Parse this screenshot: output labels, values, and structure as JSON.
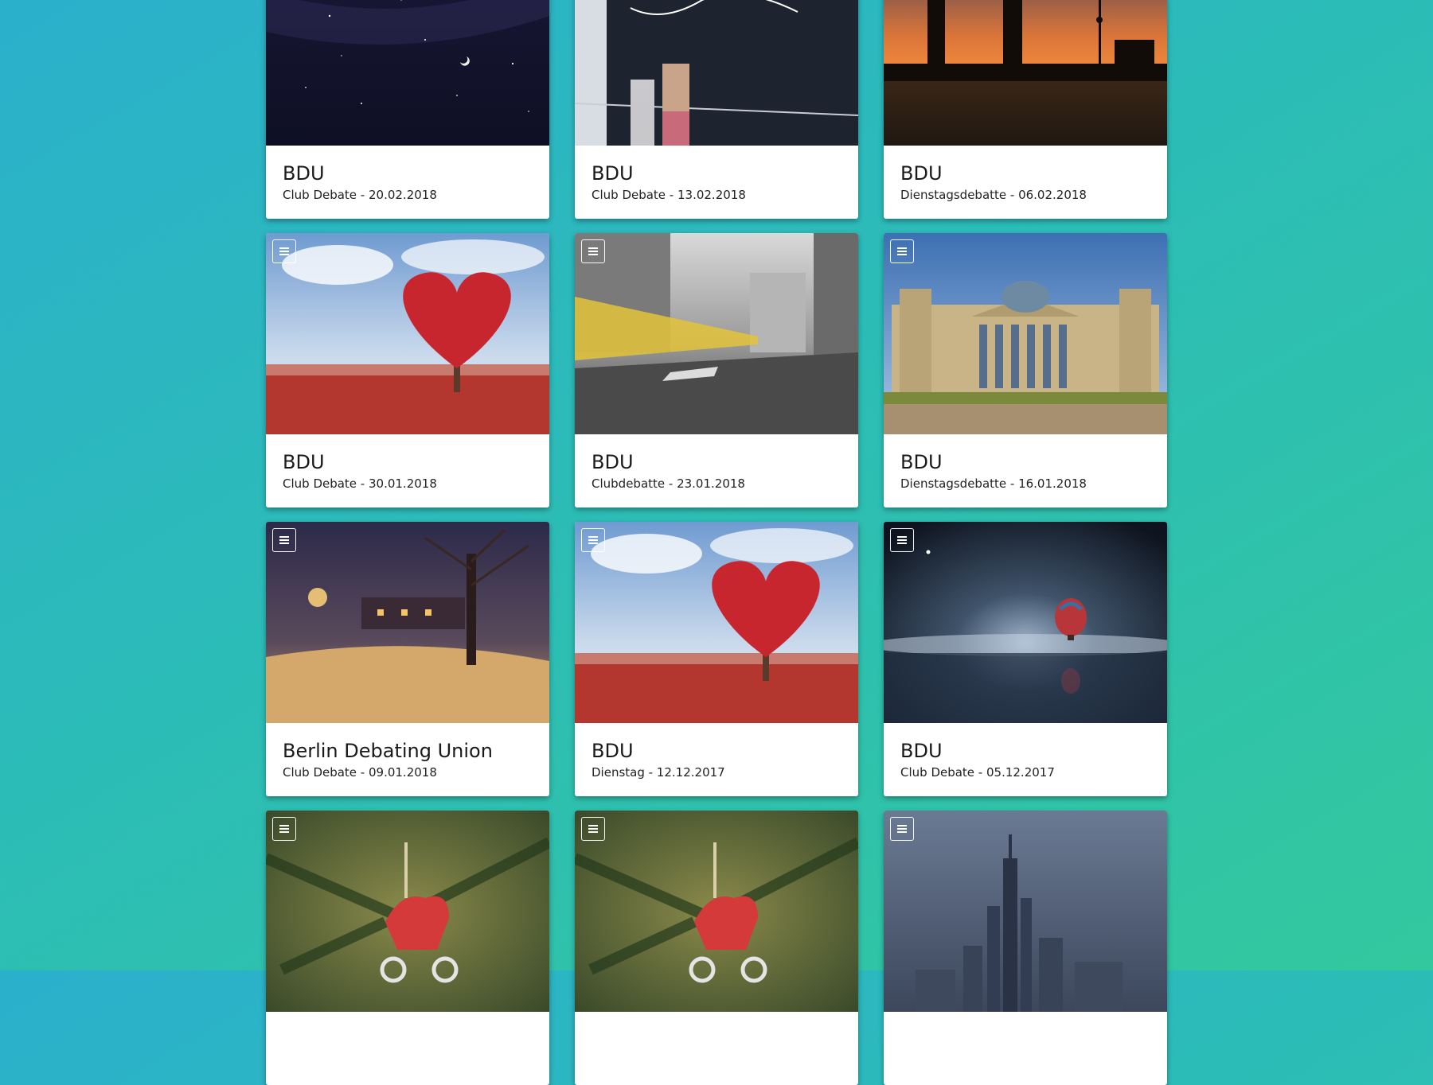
{
  "colors": {
    "background_start": "#2bb0cc",
    "background_end": "#33c89e",
    "card": "#ffffff"
  },
  "menu_icon": "hamburger-menu-icon",
  "cards": [
    {
      "title": "BDU",
      "subtitle": "Club Debate - 20.02.2018",
      "image": "night-sky-milky-way"
    },
    {
      "title": "BDU",
      "subtitle": "Club Debate - 13.02.2018",
      "image": "berlin-wall-graffiti"
    },
    {
      "title": "BDU",
      "subtitle": "Dienstagsdebatte - 06.02.2018",
      "image": "oberbaum-bridge-sunset"
    },
    {
      "title": "BDU",
      "subtitle": "Club Debate - 30.01.2018",
      "image": "heart-tree-red-field"
    },
    {
      "title": "BDU",
      "subtitle": "Clubdebatte - 23.01.2018",
      "image": "tram-motion-blur-street"
    },
    {
      "title": "BDU",
      "subtitle": "Dienstagsdebatte - 16.01.2018",
      "image": "reichstag-building"
    },
    {
      "title": "Berlin Debating Union",
      "subtitle": "Club Debate - 09.01.2018",
      "image": "snowy-night-house"
    },
    {
      "title": "BDU",
      "subtitle": "Dienstag - 12.12.2017",
      "image": "heart-tree-red-field"
    },
    {
      "title": "BDU",
      "subtitle": "Club Debate - 05.12.2017",
      "image": "hot-air-balloon-night-sea"
    },
    {
      "title": "",
      "subtitle": "",
      "image": "christmas-rocking-horse-ornament"
    },
    {
      "title": "",
      "subtitle": "",
      "image": "christmas-rocking-horse-ornament"
    },
    {
      "title": "",
      "subtitle": "",
      "image": "city-skyline-dusk"
    }
  ]
}
